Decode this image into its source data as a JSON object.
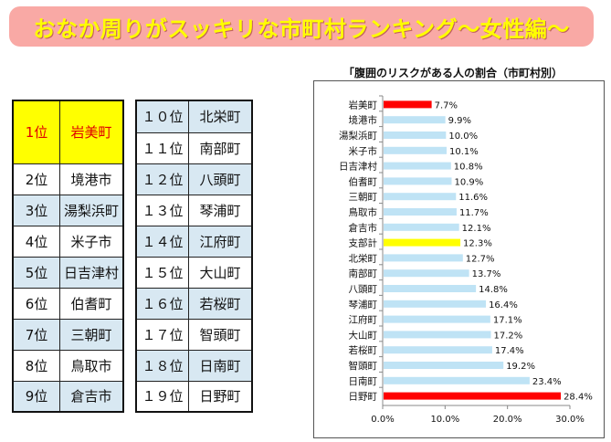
{
  "banner": {
    "title": "おなか周りがスッキリな市町村ランキング～女性編～"
  },
  "ranking": {
    "left": [
      {
        "rank": "1位",
        "name": "岩美町"
      },
      {
        "rank": "2位",
        "name": "境港市"
      },
      {
        "rank": "3位",
        "name": "湯梨浜町"
      },
      {
        "rank": "4位",
        "name": "米子市"
      },
      {
        "rank": "5位",
        "name": "日吉津村"
      },
      {
        "rank": "6位",
        "name": "伯耆町"
      },
      {
        "rank": "7位",
        "name": "三朝町"
      },
      {
        "rank": "8位",
        "name": "鳥取市"
      },
      {
        "rank": "9位",
        "name": "倉吉市"
      }
    ],
    "right": [
      {
        "rank": "１０位",
        "name": "北栄町"
      },
      {
        "rank": "１１位",
        "name": "南部町"
      },
      {
        "rank": "１２位",
        "name": "八頭町"
      },
      {
        "rank": "１３位",
        "name": "琴浦町"
      },
      {
        "rank": "１４位",
        "name": "江府町"
      },
      {
        "rank": "１５位",
        "name": "大山町"
      },
      {
        "rank": "１６位",
        "name": "若桜町"
      },
      {
        "rank": "１７位",
        "name": "智頭町"
      },
      {
        "rank": "１８位",
        "name": "日南町"
      },
      {
        "rank": "１９位",
        "name": "日野町"
      }
    ]
  },
  "chart_data": {
    "type": "bar",
    "orientation": "horizontal",
    "title": "「腹囲のリスクがある人の割合（市町村別）",
    "xlim": [
      0,
      30
    ],
    "xticks": [
      "0.0%",
      "10.0%",
      "20.0%",
      "30.0%"
    ],
    "categories": [
      "岩美町",
      "境港市",
      "湯梨浜町",
      "米子市",
      "日吉津村",
      "伯耆町",
      "三朝町",
      "鳥取市",
      "倉吉市",
      "支部計",
      "北栄町",
      "南部町",
      "八頭町",
      "琴浦町",
      "江府町",
      "大山町",
      "若桜町",
      "智頭町",
      "日南町",
      "日野町"
    ],
    "values": [
      7.7,
      9.9,
      10.0,
      10.1,
      10.8,
      10.9,
      11.6,
      11.7,
      12.1,
      12.3,
      12.7,
      13.7,
      14.8,
      16.4,
      17.1,
      17.2,
      17.4,
      19.2,
      23.4,
      28.4
    ],
    "value_labels": [
      "7.7%",
      "9.9%",
      "10.0%",
      "10.1%",
      "10.8%",
      "10.9%",
      "11.6%",
      "11.7%",
      "12.1%",
      "12.3%",
      "12.7%",
      "13.7%",
      "14.8%",
      "16.4%",
      "17.1%",
      "17.2%",
      "17.4%",
      "19.2%",
      "23.4%",
      "28.4%"
    ],
    "colors": {
      "default": "#bfe3f5",
      "highlight_low": "#ff0000",
      "highlight_high": "#ff0000",
      "average": "#ffff00"
    },
    "highlight": {
      "岩美町": "highlight_low",
      "日野町": "highlight_high",
      "支部計": "average"
    },
    "grid": false
  }
}
